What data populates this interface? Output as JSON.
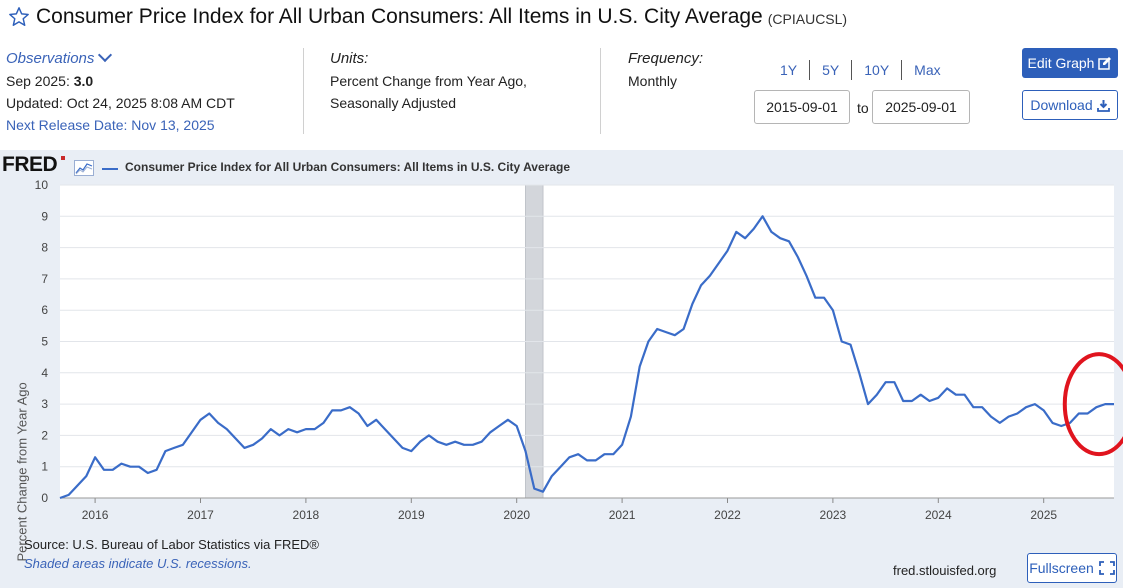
{
  "page": {
    "title": "Consumer Price Index for All Urban Consumers: All Items in U.S. City Average",
    "series_code": "(CPIAUCSL)"
  },
  "observations": {
    "label": "Observations",
    "latest_label": "Sep 2025:",
    "latest_value": "3.0",
    "updated": "Updated: Oct 24, 2025 8:08 AM CDT",
    "next_release": "Next Release Date: Nov 13, 2025"
  },
  "units": {
    "label": "Units:",
    "line1": "Percent Change from Year Ago,",
    "line2": "Seasonally Adjusted"
  },
  "frequency": {
    "label": "Frequency:",
    "value": "Monthly"
  },
  "range_buttons": [
    "1Y",
    "5Y",
    "10Y",
    "Max"
  ],
  "date_range": {
    "start": "2015-09-01",
    "to_label": "to",
    "end": "2025-09-01"
  },
  "buttons": {
    "edit_graph": "Edit Graph",
    "download": "Download",
    "fullscreen": "Fullscreen"
  },
  "footer": {
    "source": "Source: U.S. Bureau of Labor Statistics via FRED®",
    "note": "Shaded areas indicate U.S. recessions.",
    "site": "fred.stlouisfed.org"
  },
  "logo": {
    "text": "FRED"
  },
  "colors": {
    "line": "#3a6cc8",
    "recession": "#d3d6db",
    "highlight_circle": "#e0141e",
    "accent": "#2d5fba"
  },
  "chart_data": {
    "type": "line",
    "title": "Consumer Price Index for All Urban Consumers: All Items in U.S. City Average",
    "ylabel": "Percent Change from Year Ago",
    "xlabel": "",
    "ylim": [
      0,
      10
    ],
    "yticks": [
      "0",
      "1",
      "2",
      "3",
      "4",
      "5",
      "6",
      "7",
      "8",
      "9",
      "10"
    ],
    "xticks": [
      {
        "label": "2016",
        "year": 2016.0
      },
      {
        "label": "2017",
        "year": 2017.0
      },
      {
        "label": "2018",
        "year": 2018.0
      },
      {
        "label": "2019",
        "year": 2019.0
      },
      {
        "label": "2020",
        "year": 2020.0
      },
      {
        "label": "2021",
        "year": 2021.0
      },
      {
        "label": "2022",
        "year": 2022.0
      },
      {
        "label": "2023",
        "year": 2023.0
      },
      {
        "label": "2024",
        "year": 2024.0
      },
      {
        "label": "2025",
        "year": 2025.0
      }
    ],
    "xlim": [
      2015.667,
      2025.667
    ],
    "recession": {
      "start": 2020.083,
      "end": 2020.25
    },
    "highlight": {
      "start": 2025.2,
      "end": 2025.85,
      "center_value": 3.0
    },
    "series": [
      {
        "name": "Consumer Price Index for All Urban Consumers: All Items in U.S. City Average",
        "start": "2015-09",
        "values": [
          0.0,
          0.1,
          0.4,
          0.7,
          1.3,
          0.9,
          0.9,
          1.1,
          1.0,
          1.0,
          0.8,
          0.9,
          1.5,
          1.6,
          1.7,
          2.1,
          2.5,
          2.7,
          2.4,
          2.2,
          1.9,
          1.6,
          1.7,
          1.9,
          2.2,
          2.0,
          2.2,
          2.1,
          2.2,
          2.2,
          2.4,
          2.8,
          2.8,
          2.9,
          2.7,
          2.3,
          2.5,
          2.2,
          1.9,
          1.6,
          1.5,
          1.8,
          2.0,
          1.8,
          1.7,
          1.8,
          1.7,
          1.7,
          1.8,
          2.1,
          2.3,
          2.5,
          2.3,
          1.5,
          0.3,
          0.2,
          0.7,
          1.0,
          1.3,
          1.4,
          1.2,
          1.2,
          1.4,
          1.4,
          1.7,
          2.6,
          4.2,
          5.0,
          5.4,
          5.3,
          5.2,
          5.4,
          6.2,
          6.8,
          7.1,
          7.5,
          7.9,
          8.5,
          8.3,
          8.6,
          9.0,
          8.5,
          8.3,
          8.2,
          7.7,
          7.1,
          6.4,
          6.4,
          6.0,
          5.0,
          4.9,
          4.0,
          3.0,
          3.3,
          3.7,
          3.7,
          3.1,
          3.1,
          3.3,
          3.1,
          3.2,
          3.5,
          3.3,
          3.3,
          2.9,
          2.9,
          2.6,
          2.4,
          2.6,
          2.7,
          2.9,
          3.0,
          2.8,
          2.4,
          2.3,
          2.4,
          2.7,
          2.7,
          2.9,
          3.0,
          3.0
        ]
      }
    ]
  }
}
